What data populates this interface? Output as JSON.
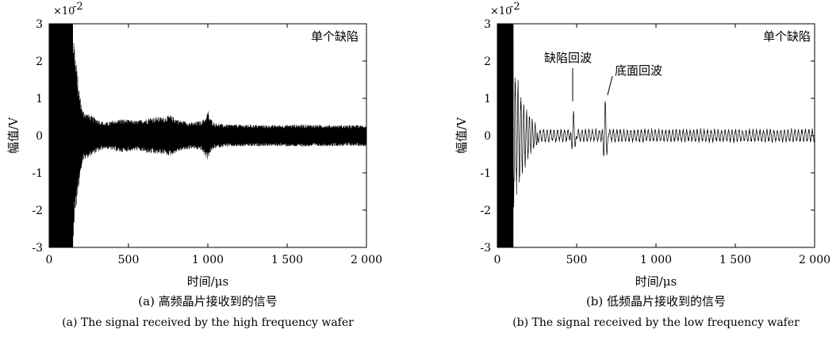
{
  "chart_data": [
    {
      "type": "line",
      "panel": "a",
      "legend_text": "单个缺陷",
      "xlabel": "时间/μs",
      "ylabel": "幅值/V",
      "y_scale_note": "×10⁻²",
      "xlim": [
        0,
        2000
      ],
      "ylim": [
        -3,
        3
      ],
      "xticks": [
        0,
        500,
        1000,
        1500,
        2000
      ],
      "xtick_labels": [
        "0",
        "500",
        "1 000",
        "1 500",
        "2 000"
      ],
      "yticks": [
        3,
        2,
        1,
        0,
        -1,
        -2,
        -3
      ],
      "ytick_labels": [
        "3",
        "2",
        "1",
        "0",
        "-1",
        "-2",
        "-3"
      ],
      "caption_cn": "(a) 高频晶片接收到的信号",
      "caption_en": "(a) The signal received by the high frequency wafer",
      "envelope": {
        "x": [
          0,
          40,
          80,
          120,
          150,
          170,
          190,
          210,
          240,
          280,
          350,
          450,
          550,
          650,
          720,
          760,
          820,
          900,
          960,
          990,
          1000,
          1010,
          1040,
          1100,
          1200,
          1400,
          1600,
          1800,
          2000
        ],
        "upper": [
          3.0,
          3.0,
          3.0,
          3.0,
          3.0,
          2.0,
          1.2,
          0.7,
          0.6,
          0.5,
          0.35,
          0.45,
          0.4,
          0.5,
          0.5,
          0.55,
          0.42,
          0.35,
          0.4,
          0.5,
          0.7,
          0.5,
          0.35,
          0.3,
          0.3,
          0.28,
          0.3,
          0.28,
          0.28
        ],
        "lower": [
          -3.0,
          -3.0,
          -3.0,
          -3.0,
          -3.0,
          -2.0,
          -1.2,
          -0.7,
          -0.6,
          -0.5,
          -0.35,
          -0.45,
          -0.4,
          -0.5,
          -0.5,
          -0.55,
          -0.42,
          -0.35,
          -0.4,
          -0.6,
          -0.65,
          -0.5,
          -0.35,
          -0.3,
          -0.3,
          -0.28,
          -0.3,
          -0.28,
          -0.28
        ]
      }
    },
    {
      "type": "line",
      "panel": "b",
      "legend_text": "单个缺陷",
      "xlabel": "时间/μs",
      "ylabel": "幅值/V",
      "y_scale_note": "×10⁻²",
      "xlim": [
        0,
        2000
      ],
      "ylim": [
        -3,
        3
      ],
      "xticks": [
        0,
        500,
        1000,
        1500,
        2000
      ],
      "xtick_labels": [
        "0",
        "500",
        "1 000",
        "1 500",
        "2 000"
      ],
      "yticks": [
        3,
        2,
        1,
        0,
        -1,
        -2,
        -3
      ],
      "ytick_labels": [
        "3",
        "2",
        "1",
        "0",
        "-1",
        "-2",
        "-3"
      ],
      "caption_cn": "(b) 低频晶片接收到的信号",
      "caption_en": "(b) The signal received by the low frequency wafer",
      "annotations": [
        {
          "text": "缺陷回波",
          "x": 480,
          "y": 0.75
        },
        {
          "text": "底面回波",
          "x": 680,
          "y": 1.0
        }
      ],
      "peaks": [
        {
          "x": 480,
          "amp": 0.75
        },
        {
          "x": 680,
          "amp": 1.0
        }
      ],
      "noise_amplitude": 0.18,
      "initial_burst": {
        "x_start": 0,
        "x_end": 100,
        "amp": 3.0
      },
      "ringdown": [
        {
          "x": 100,
          "amp": 2.0
        },
        {
          "x": 150,
          "amp": 1.2
        },
        {
          "x": 200,
          "amp": 0.6
        },
        {
          "x": 250,
          "amp": 0.3
        }
      ]
    }
  ]
}
